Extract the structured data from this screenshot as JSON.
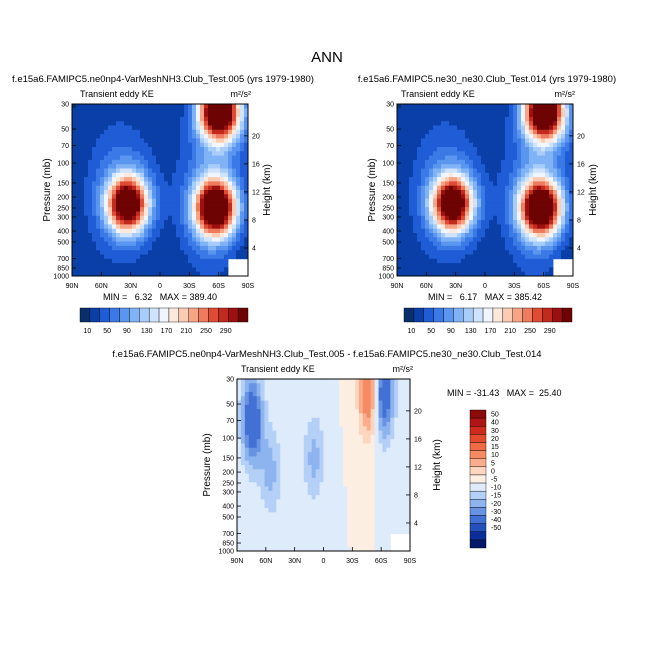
{
  "figure": {
    "title": "ANN"
  },
  "chart_data": [
    {
      "type": "heatmap",
      "title": "f.e15a6.FAMIPC5.ne0np4-VarMeshNH3.Club_Test.005 (yrs 1979-1980)",
      "left_label": "Transient eddy KE",
      "right_label": "m²/s²",
      "ylabel": "Pressure (mb)",
      "ylabel_right": "Height (km)",
      "x_ticks": [
        "90N",
        "60N",
        "30N",
        "0",
        "30S",
        "60S",
        "90S"
      ],
      "y_ticks": [
        "30",
        "50",
        "70",
        "100",
        "150",
        "200",
        "250",
        "300",
        "400",
        "500",
        "700",
        "850",
        "1000"
      ],
      "y2_ticks": [
        "20",
        "16",
        "12",
        "8",
        "4"
      ],
      "min_max": "MIN =   6.32   MAX = 389.40",
      "colorbar_labels": [
        "10",
        "50",
        "90",
        "130",
        "170",
        "210",
        "250",
        "290"
      ],
      "colorbar_colors": [
        "#08306b",
        "#0a3fa8",
        "#1f5cd6",
        "#3b7ae6",
        "#5a96f0",
        "#80b2f6",
        "#a8cdfa",
        "#cfe3fc",
        "#f0f5ff",
        "#fde8dc",
        "#fbcbb3",
        "#f7a486",
        "#ef7b5e",
        "#e04b35",
        "#c22a1e",
        "#9c1010",
        "#6e0303"
      ],
      "levels": [
        10,
        30,
        50,
        70,
        90,
        110,
        130,
        150,
        170,
        190,
        210,
        230,
        250,
        270,
        290,
        310
      ],
      "features": [
        {
          "lat": -60,
          "p": 35,
          "amp": 390
        },
        {
          "lat": -57,
          "p": 250,
          "amp": 385
        },
        {
          "lat": 33,
          "p": 230,
          "amp": 355
        }
      ]
    },
    {
      "type": "heatmap",
      "title": "f.e15a6.FAMIPC5.ne30_ne30.Club_Test.014 (yrs 1979-1980)",
      "left_label": "Transient eddy KE",
      "right_label": "m²/s²",
      "ylabel": "Pressure (mb)",
      "ylabel_right": "Height (km)",
      "x_ticks": [
        "90N",
        "60N",
        "30N",
        "0",
        "30S",
        "60S",
        "90S"
      ],
      "y_ticks": [
        "30",
        "50",
        "70",
        "100",
        "150",
        "200",
        "250",
        "300",
        "400",
        "500",
        "700",
        "850",
        "1000"
      ],
      "y2_ticks": [
        "20",
        "16",
        "12",
        "8",
        "4"
      ],
      "min_max": "MIN =   6.17   MAX = 385.42",
      "colorbar_labels": [
        "10",
        "50",
        "90",
        "130",
        "170",
        "210",
        "250",
        "290"
      ],
      "colorbar_colors": [
        "#08306b",
        "#0a3fa8",
        "#1f5cd6",
        "#3b7ae6",
        "#5a96f0",
        "#80b2f6",
        "#a8cdfa",
        "#cfe3fc",
        "#f0f5ff",
        "#fde8dc",
        "#fbcbb3",
        "#f7a486",
        "#ef7b5e",
        "#e04b35",
        "#c22a1e",
        "#9c1010",
        "#6e0303"
      ],
      "levels": [
        10,
        30,
        50,
        70,
        90,
        110,
        130,
        150,
        170,
        190,
        210,
        230,
        250,
        270,
        290,
        310
      ],
      "features": [
        {
          "lat": -60,
          "p": 35,
          "amp": 385
        },
        {
          "lat": -57,
          "p": 250,
          "amp": 380
        },
        {
          "lat": 33,
          "p": 230,
          "amp": 350
        }
      ]
    },
    {
      "type": "heatmap",
      "title": "f.e15a6.FAMIPC5.ne0np4-VarMeshNH3.Club_Test.005 - f.e15a6.FAMIPC5.ne30_ne30.Club_Test.014",
      "left_label": "Transient eddy KE",
      "right_label": "m²/s²",
      "ylabel": "Pressure (mb)",
      "ylabel_right": "Height (km)",
      "x_ticks": [
        "90N",
        "60N",
        "30N",
        "0",
        "30S",
        "60S",
        "90S"
      ],
      "y_ticks": [
        "30",
        "50",
        "70",
        "100",
        "150",
        "200",
        "250",
        "300",
        "400",
        "500",
        "700",
        "850",
        "1000"
      ],
      "y2_ticks": [
        "20",
        "16",
        "12",
        "8",
        "4"
      ],
      "min_max": "MIN = -31.43   MAX =  25.40",
      "colorbar_labels": [
        "50",
        "40",
        "30",
        "20",
        "15",
        "10",
        "5",
        "0",
        "-5",
        "-10",
        "-15",
        "-20",
        "-30",
        "-40",
        "-50"
      ],
      "colorbar_colors": [
        "#8b0a0a",
        "#b01515",
        "#cf2a1c",
        "#e34a2e",
        "#f06a45",
        "#f58a63",
        "#f9ad8c",
        "#fdd6c0",
        "#fdeee2",
        "#deebfb",
        "#b5d0f6",
        "#8eb4ef",
        "#6893e3",
        "#4270d4",
        "#2450bd",
        "#0b2e9a",
        "#03186a"
      ],
      "levels": [
        -50,
        -40,
        -30,
        -20,
        -15,
        -10,
        -5,
        0,
        5,
        10,
        15,
        20,
        30,
        40,
        50
      ],
      "features": [
        {
          "lat": -48,
          "p": 40,
          "amp": 25
        },
        {
          "lat": -62,
          "p": 40,
          "amp": -31
        },
        {
          "lat": 74,
          "p": 70,
          "amp": -30
        },
        {
          "lat": 10,
          "p": 150,
          "amp": -12
        },
        {
          "lat": 55,
          "p": 200,
          "amp": -12
        }
      ]
    }
  ]
}
